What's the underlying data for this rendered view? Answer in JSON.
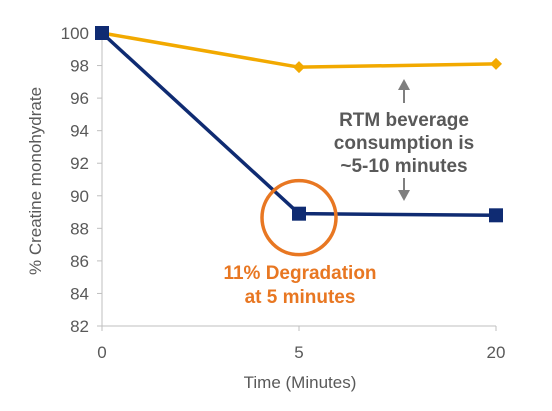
{
  "chart_data": {
    "type": "line",
    "title": "",
    "xlabel": "Time (Minutes)",
    "ylabel": "% Creatine monohydrate",
    "categories": [
      "0",
      "5",
      "20"
    ],
    "ylim": [
      82,
      100
    ],
    "yticks": [
      82,
      84,
      86,
      88,
      90,
      92,
      94,
      96,
      98,
      100
    ],
    "grid": false,
    "legend": "none",
    "series": [
      {
        "color": "#F2A900",
        "marker": "diamond",
        "values": [
          100,
          97.9,
          98.1
        ]
      },
      {
        "color": "#0F2B72",
        "marker": "square",
        "values": [
          100,
          88.9,
          88.8
        ]
      }
    ],
    "annotations": {
      "degradation": {
        "lines": [
          "11% Degradation",
          "at 5 minutes"
        ],
        "color": "#E87722",
        "category": "5",
        "value": 88.9
      },
      "consumption": {
        "lines": [
          "RTM beverage",
          "consumption is",
          "~5-10 minutes"
        ],
        "color": "#595959",
        "arrow_color": "#7F7F7F"
      }
    },
    "axis_color": "#BFBFBF"
  }
}
